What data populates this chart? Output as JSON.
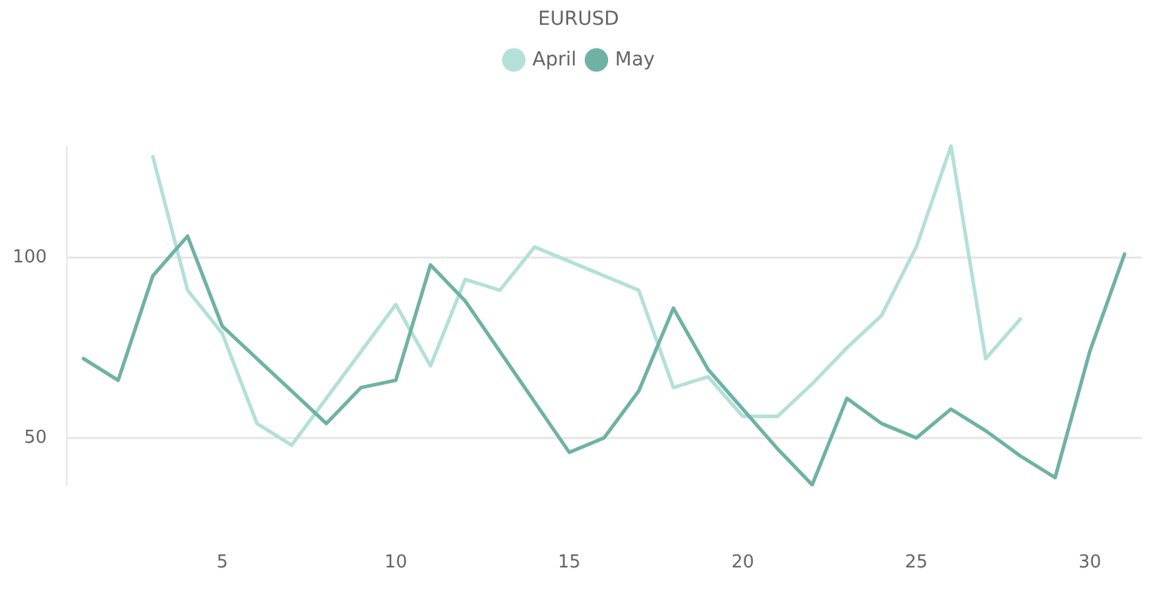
{
  "chart_data": {
    "type": "line",
    "title": "EURUSD",
    "x": [
      1,
      2,
      3,
      4,
      5,
      6,
      7,
      8,
      9,
      10,
      11,
      12,
      13,
      14,
      15,
      16,
      17,
      18,
      19,
      20,
      21,
      22,
      23,
      24,
      25,
      26,
      27,
      28,
      29,
      30,
      31
    ],
    "series": [
      {
        "name": "April",
        "color": "#b3e0d9",
        "values": [
          null,
          null,
          128,
          91,
          79,
          54,
          48,
          61,
          74,
          87,
          70,
          94,
          91,
          103,
          99,
          95,
          91,
          64,
          67,
          56,
          56,
          65,
          75,
          84,
          103,
          131,
          72,
          83,
          null,
          null,
          null
        ]
      },
      {
        "name": "May",
        "color": "#6fb2a5",
        "values": [
          72,
          66,
          95,
          106,
          81,
          72,
          63,
          54,
          64,
          66,
          98,
          88,
          74,
          60,
          46,
          50,
          63,
          86,
          69,
          58,
          47,
          37,
          61,
          54,
          50,
          58,
          52,
          45,
          39,
          74,
          101
        ]
      }
    ],
    "xlim": [
      0.5,
      31.5
    ],
    "xticks": [
      5,
      10,
      15,
      20,
      25,
      30
    ],
    "ylim": [
      37,
      131
    ],
    "yticks": [
      50,
      100
    ],
    "grid": "y",
    "legend": "top",
    "marker": "none",
    "line_style": "solid"
  }
}
